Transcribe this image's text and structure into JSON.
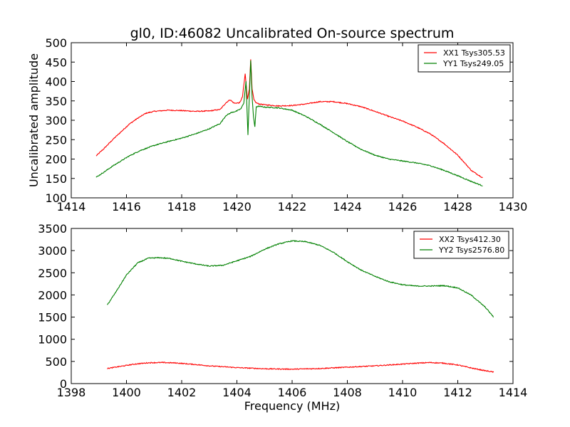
{
  "title": "gl0, ID:46082 Uncalibrated On-source spectrum",
  "chart_data": [
    {
      "type": "line",
      "ylabel": "Uncalibrated amplitude",
      "xlabel": "",
      "xlim": [
        1414,
        1430
      ],
      "ylim": [
        100,
        500
      ],
      "xticks": [
        1414,
        1416,
        1418,
        1420,
        1422,
        1424,
        1426,
        1428,
        1430
      ],
      "yticks": [
        100,
        150,
        200,
        250,
        300,
        350,
        400,
        450,
        500
      ],
      "legend_position": "top-right",
      "series": [
        {
          "name": "XX1 Tsys305.53",
          "color": "#ff0000",
          "x": [
            1414.9,
            1415.2,
            1415.5,
            1415.8,
            1416.1,
            1416.4,
            1416.7,
            1417.0,
            1417.5,
            1418.0,
            1418.5,
            1419.0,
            1419.4,
            1419.6,
            1419.75,
            1419.9,
            1420.1,
            1420.2,
            1420.3,
            1420.38,
            1420.45,
            1420.5,
            1420.55,
            1420.62,
            1420.7,
            1420.8,
            1421.0,
            1421.5,
            1422.0,
            1422.5,
            1423.0,
            1423.5,
            1424.0,
            1424.5,
            1425.0,
            1425.5,
            1426.0,
            1426.5,
            1427.0,
            1427.5,
            1428.0,
            1428.5,
            1428.9
          ],
          "y": [
            208,
            228,
            250,
            270,
            290,
            305,
            318,
            323,
            326,
            325,
            323,
            324,
            328,
            345,
            353,
            344,
            345,
            360,
            420,
            355,
            380,
            458,
            380,
            352,
            345,
            342,
            340,
            337,
            338,
            342,
            348,
            348,
            343,
            335,
            323,
            310,
            298,
            283,
            265,
            240,
            210,
            170,
            152
          ]
        },
        {
          "name": "YY1 Tsys249.05",
          "color": "#008000",
          "x": [
            1414.9,
            1415.2,
            1415.5,
            1415.8,
            1416.1,
            1416.5,
            1417.0,
            1417.5,
            1418.0,
            1418.5,
            1419.0,
            1419.4,
            1419.6,
            1419.8,
            1420.0,
            1420.15,
            1420.25,
            1420.33,
            1420.4,
            1420.45,
            1420.5,
            1420.55,
            1420.6,
            1420.65,
            1420.7,
            1420.8,
            1421.0,
            1421.5,
            1422.0,
            1422.5,
            1423.0,
            1423.5,
            1424.0,
            1424.5,
            1425.0,
            1425.5,
            1426.0,
            1426.5,
            1427.0,
            1427.5,
            1428.0,
            1428.5,
            1428.9
          ],
          "y": [
            153,
            167,
            182,
            195,
            208,
            222,
            235,
            245,
            254,
            265,
            278,
            292,
            312,
            320,
            324,
            330,
            345,
            400,
            262,
            360,
            455,
            360,
            310,
            282,
            335,
            336,
            334,
            332,
            326,
            310,
            290,
            268,
            245,
            225,
            210,
            200,
            195,
            190,
            183,
            171,
            157,
            142,
            131
          ]
        }
      ]
    },
    {
      "type": "line",
      "ylabel": "",
      "xlabel": "Frequency (MHz)",
      "xlim": [
        1398,
        1414
      ],
      "ylim": [
        0,
        3500
      ],
      "xticks": [
        1398,
        1400,
        1402,
        1404,
        1406,
        1408,
        1410,
        1412,
        1414
      ],
      "yticks": [
        0,
        500,
        1000,
        1500,
        2000,
        2500,
        3000,
        3500
      ],
      "legend_position": "top-right",
      "series": [
        {
          "name": "XX2 Tsys412.30",
          "color": "#ff0000",
          "x": [
            1399.3,
            1399.8,
            1400.3,
            1400.8,
            1401.3,
            1401.8,
            1402.5,
            1403.0,
            1404.0,
            1405.0,
            1406.0,
            1407.0,
            1408.0,
            1409.0,
            1410.0,
            1410.5,
            1411.0,
            1411.5,
            1412.0,
            1412.5,
            1413.0,
            1413.3
          ],
          "y": [
            340,
            390,
            440,
            470,
            475,
            465,
            430,
            400,
            360,
            335,
            325,
            340,
            370,
            400,
            440,
            460,
            475,
            460,
            420,
            350,
            290,
            260
          ]
        },
        {
          "name": "YY2 Tsys2576.80",
          "color": "#008000",
          "x": [
            1399.3,
            1399.6,
            1400.0,
            1400.4,
            1400.8,
            1401.2,
            1401.6,
            1402.0,
            1402.5,
            1403.0,
            1403.5,
            1404.0,
            1404.5,
            1405.0,
            1405.5,
            1406.0,
            1406.5,
            1407.0,
            1407.5,
            1408.0,
            1408.5,
            1409.0,
            1409.5,
            1410.0,
            1410.5,
            1411.0,
            1411.5,
            1412.0,
            1412.5,
            1413.0,
            1413.3
          ],
          "y": [
            1770,
            2050,
            2450,
            2720,
            2830,
            2840,
            2820,
            2760,
            2700,
            2650,
            2670,
            2770,
            2870,
            3030,
            3150,
            3220,
            3200,
            3120,
            2960,
            2750,
            2560,
            2420,
            2300,
            2230,
            2200,
            2200,
            2210,
            2160,
            1990,
            1720,
            1500
          ]
        }
      ]
    }
  ]
}
